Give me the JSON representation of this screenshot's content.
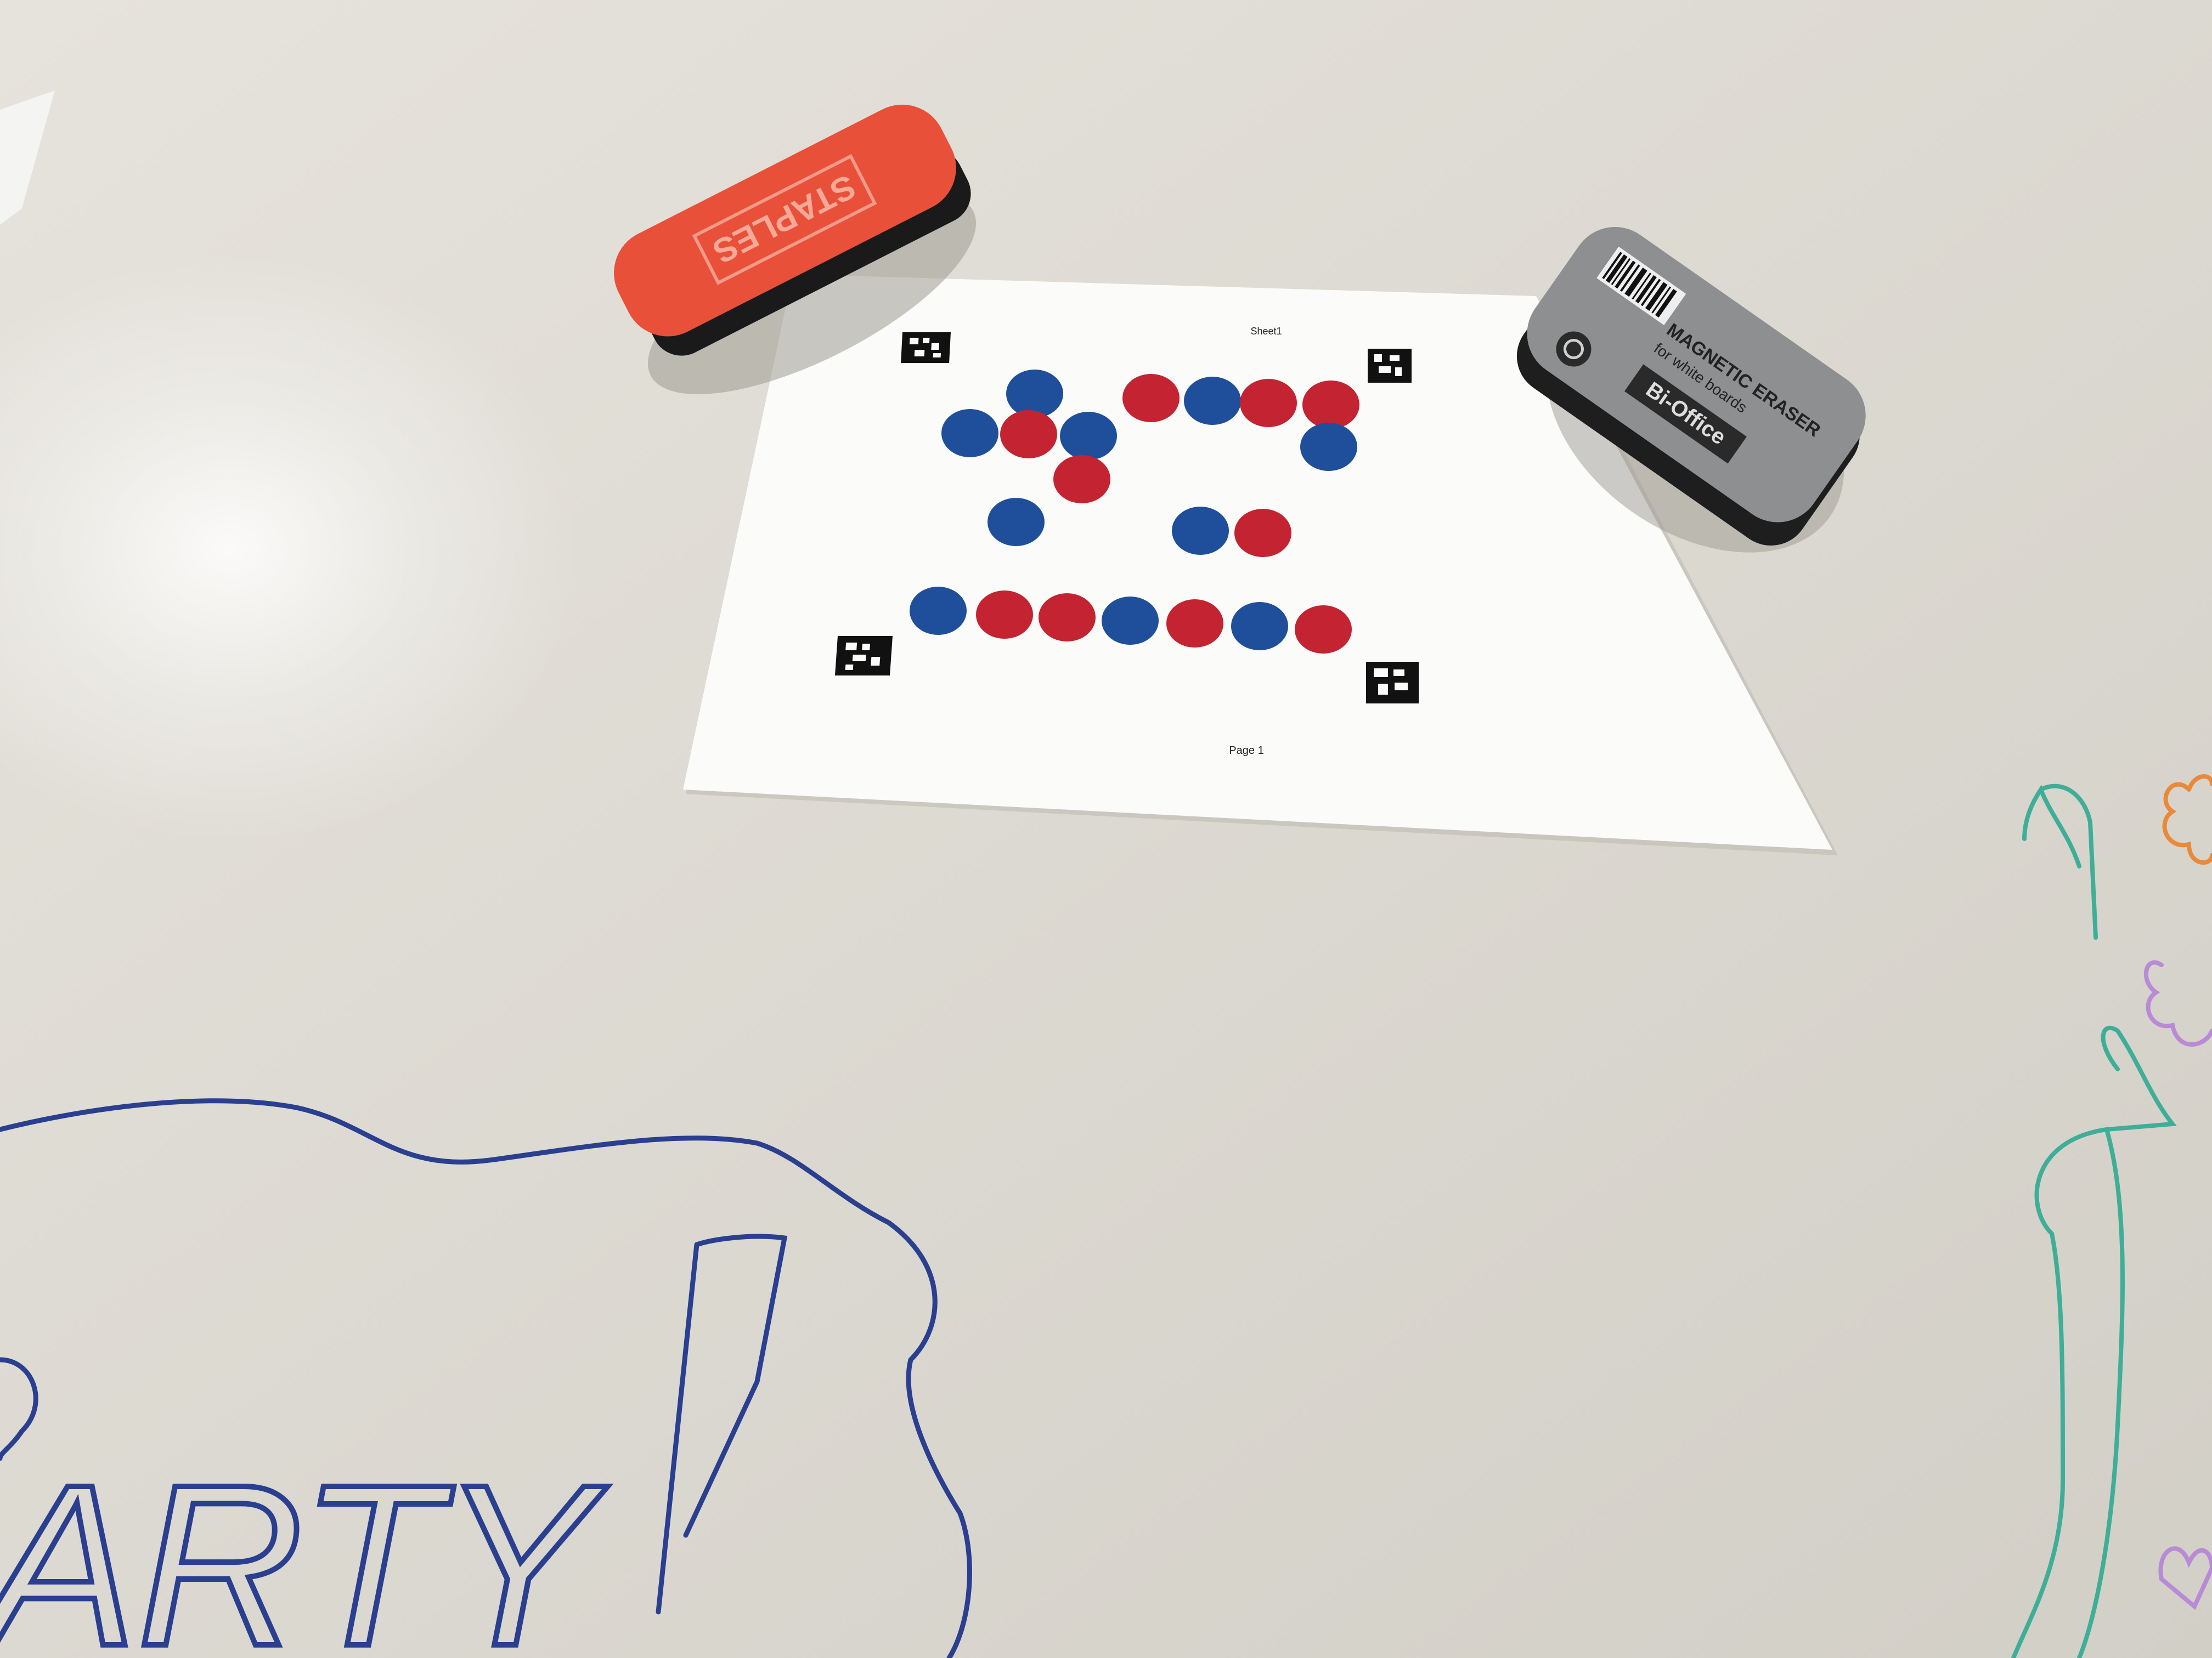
{
  "scene": {
    "board_color": "#d9d6cf",
    "shadow_color": "#b9b6ae"
  },
  "printout": {
    "header": "Sheet1",
    "footer": "Page 1",
    "paper_color": "#fbfbfa",
    "marker_color": "#111111",
    "chip_colors": {
      "red": "#c42332",
      "blue": "#1f4f9a"
    },
    "row1": {
      "group_a": [
        "blue",
        "blue",
        "red",
        "blue",
        "red"
      ],
      "group_b": [
        "red",
        "blue",
        "red",
        "red",
        "blue"
      ]
    },
    "row2": {
      "single": [
        "blue"
      ],
      "pair": [
        "blue",
        "red"
      ]
    },
    "row3": [
      "blue",
      "red",
      "red",
      "blue",
      "red",
      "blue",
      "red"
    ]
  },
  "red_eraser": {
    "brand": "STAPLES",
    "color": "#e8503a"
  },
  "gray_eraser": {
    "brand": "Bi-Office",
    "title": "MAGNETIC ERASER",
    "subtitle": "for white boards",
    "color": "#8d8f90"
  },
  "whiteboard_doodle": {
    "word": "ARTY",
    "ink_color": "#2a3f8f",
    "flower_colors": [
      "#3fae98",
      "#b98ad6",
      "#e9893a"
    ]
  }
}
